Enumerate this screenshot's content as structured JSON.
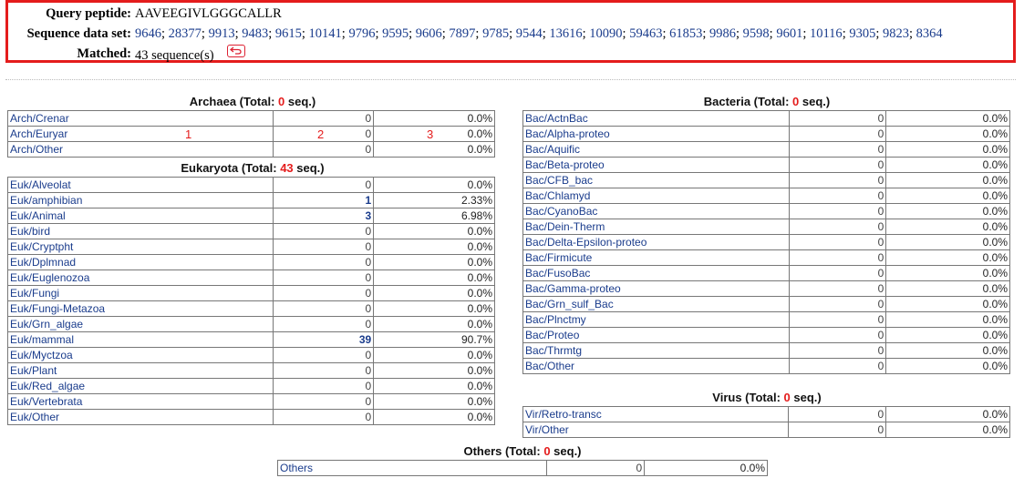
{
  "query": {
    "peptide_label": "Query peptide:",
    "peptide_value": "AAVEEGIVLGGGCALLR",
    "dataset_label": "Sequence data set:",
    "dataset_ids": [
      "9646",
      "28377",
      "9913",
      "9483",
      "9615",
      "10141",
      "9796",
      "9595",
      "9606",
      "7897",
      "9785",
      "9544",
      "13616",
      "10090",
      "59463",
      "61853",
      "9986",
      "9598",
      "9601",
      "10116",
      "9305",
      "9823",
      "8364"
    ],
    "matched_label": "Matched:",
    "matched_value": "43 sequence(s)",
    "back_icon": "return-arrow-icon",
    "border_color": "#e41c1c"
  },
  "archaea": {
    "title_prefix": "Archaea (Total: ",
    "total": "0",
    "title_suffix": " seq.)",
    "rows": [
      {
        "name": "Arch/Crenar",
        "count": "0",
        "pct": "0.0%"
      },
      {
        "name": "Arch/Euryar",
        "count": "0",
        "pct": "0.0%"
      },
      {
        "name": "Arch/Other",
        "count": "0",
        "pct": "0.0%"
      }
    ]
  },
  "annotations": [
    "1",
    "2",
    "3"
  ],
  "eukaryota": {
    "title_prefix": "Eukaryota (Total: ",
    "total": "43",
    "title_suffix": " seq.)",
    "rows": [
      {
        "name": "Euk/Alveolat",
        "count": "0",
        "pct": "0.0%"
      },
      {
        "name": "Euk/amphibian",
        "count": "1",
        "pct": "2.33%"
      },
      {
        "name": "Euk/Animal",
        "count": "3",
        "pct": "6.98%"
      },
      {
        "name": "Euk/bird",
        "count": "0",
        "pct": "0.0%"
      },
      {
        "name": "Euk/Cryptpht",
        "count": "0",
        "pct": "0.0%"
      },
      {
        "name": "Euk/Dplmnad",
        "count": "0",
        "pct": "0.0%"
      },
      {
        "name": "Euk/Euglenozoa",
        "count": "0",
        "pct": "0.0%"
      },
      {
        "name": "Euk/Fungi",
        "count": "0",
        "pct": "0.0%"
      },
      {
        "name": "Euk/Fungi-Metazoa",
        "count": "0",
        "pct": "0.0%"
      },
      {
        "name": "Euk/Grn_algae",
        "count": "0",
        "pct": "0.0%"
      },
      {
        "name": "Euk/mammal",
        "count": "39",
        "pct": "90.7%"
      },
      {
        "name": "Euk/Myctzoa",
        "count": "0",
        "pct": "0.0%"
      },
      {
        "name": "Euk/Plant",
        "count": "0",
        "pct": "0.0%"
      },
      {
        "name": "Euk/Red_algae",
        "count": "0",
        "pct": "0.0%"
      },
      {
        "name": "Euk/Vertebrata",
        "count": "0",
        "pct": "0.0%"
      },
      {
        "name": "Euk/Other",
        "count": "0",
        "pct": "0.0%"
      }
    ]
  },
  "bacteria": {
    "title_prefix": "Bacteria (Total: ",
    "total": "0",
    "title_suffix": " seq.)",
    "rows": [
      {
        "name": "Bac/ActnBac",
        "count": "0",
        "pct": "0.0%"
      },
      {
        "name": "Bac/Alpha-proteo",
        "count": "0",
        "pct": "0.0%"
      },
      {
        "name": "Bac/Aquific",
        "count": "0",
        "pct": "0.0%"
      },
      {
        "name": "Bac/Beta-proteo",
        "count": "0",
        "pct": "0.0%"
      },
      {
        "name": "Bac/CFB_bac",
        "count": "0",
        "pct": "0.0%"
      },
      {
        "name": "Bac/Chlamyd",
        "count": "0",
        "pct": "0.0%"
      },
      {
        "name": "Bac/CyanoBac",
        "count": "0",
        "pct": "0.0%"
      },
      {
        "name": "Bac/Dein-Therm",
        "count": "0",
        "pct": "0.0%"
      },
      {
        "name": "Bac/Delta-Epsilon-proteo",
        "count": "0",
        "pct": "0.0%"
      },
      {
        "name": "Bac/Firmicute",
        "count": "0",
        "pct": "0.0%"
      },
      {
        "name": "Bac/FusoBac",
        "count": "0",
        "pct": "0.0%"
      },
      {
        "name": "Bac/Gamma-proteo",
        "count": "0",
        "pct": "0.0%"
      },
      {
        "name": "Bac/Grn_sulf_Bac",
        "count": "0",
        "pct": "0.0%"
      },
      {
        "name": "Bac/Plnctmy",
        "count": "0",
        "pct": "0.0%"
      },
      {
        "name": "Bac/Proteo",
        "count": "0",
        "pct": "0.0%"
      },
      {
        "name": "Bac/Thrmtg",
        "count": "0",
        "pct": "0.0%"
      },
      {
        "name": "Bac/Other",
        "count": "0",
        "pct": "0.0%"
      }
    ]
  },
  "virus": {
    "title_prefix": "Virus (Total: ",
    "total": "0",
    "title_suffix": " seq.)",
    "rows": [
      {
        "name": "Vir/Retro-transc",
        "count": "0",
        "pct": "0.0%"
      },
      {
        "name": "Vir/Other",
        "count": "0",
        "pct": "0.0%"
      }
    ]
  },
  "others": {
    "title_prefix": "Others (Total: ",
    "total": "0",
    "title_suffix": " seq.)",
    "rows": [
      {
        "name": "Others",
        "count": "0",
        "pct": "0.0%"
      }
    ]
  }
}
